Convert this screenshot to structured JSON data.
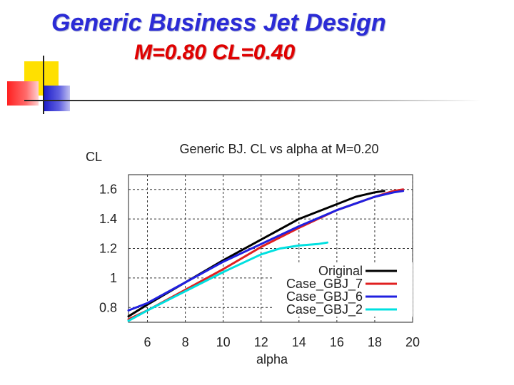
{
  "slide": {
    "title": "Generic Business Jet Design",
    "subtitle": "M=0.80  CL=0.40"
  },
  "colors": {
    "title": "#2b2bd6",
    "subtitle": "#e00000",
    "deco_yellow": "#ffe000",
    "deco_red": "#ff3030",
    "deco_blue": "#2c2ccc"
  },
  "chart_data": {
    "type": "line",
    "title": "Generic BJ. CL vs alpha at M=0.20",
    "xlabel": "alpha",
    "ylabel": "CL",
    "xlim": [
      5,
      20
    ],
    "ylim": [
      0.7,
      1.7
    ],
    "xticks": [
      "6",
      "8",
      "10",
      "12",
      "14",
      "16",
      "18",
      "20"
    ],
    "yticks": [
      "0.8",
      "1",
      "1.2",
      "1.4",
      "1.6"
    ],
    "grid": true,
    "legend": "bottom-right",
    "series": [
      {
        "name": "Original",
        "color": "#000000",
        "x": [
          5.0,
          6,
          8,
          10,
          12,
          14,
          16,
          17,
          18,
          18.5
        ],
        "y": [
          0.74,
          0.82,
          0.97,
          1.12,
          1.26,
          1.4,
          1.5,
          1.55,
          1.58,
          1.59
        ]
      },
      {
        "name": "Case_GBJ_7",
        "color": "#e02020",
        "x": [
          5.0,
          6,
          8,
          10,
          12,
          14,
          16,
          18,
          19,
          19.5
        ],
        "y": [
          0.72,
          0.78,
          0.92,
          1.06,
          1.21,
          1.34,
          1.46,
          1.55,
          1.59,
          1.6
        ]
      },
      {
        "name": "Case_GBJ_6",
        "color": "#2020e0",
        "x": [
          5.0,
          6,
          8,
          10,
          12,
          14,
          16,
          18,
          19,
          19.5
        ],
        "y": [
          0.78,
          0.83,
          0.97,
          1.11,
          1.23,
          1.35,
          1.46,
          1.55,
          1.58,
          1.59
        ]
      },
      {
        "name": "Case_GBJ_2",
        "color": "#00e0e0",
        "x": [
          5.0,
          6,
          8,
          10,
          11,
          12,
          13,
          14,
          15,
          15.5
        ],
        "y": [
          0.71,
          0.78,
          0.91,
          1.04,
          1.1,
          1.16,
          1.2,
          1.22,
          1.23,
          1.24
        ]
      }
    ]
  }
}
